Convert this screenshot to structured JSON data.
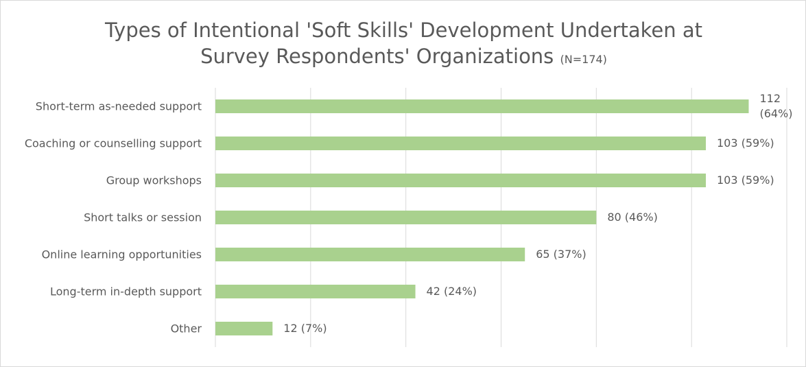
{
  "chart_data": {
    "type": "bar",
    "orientation": "horizontal",
    "title": "Types of Intentional 'Soft Skills' Development Undertaken at Survey Respondents' Organizations",
    "subtitle": "(N=174)",
    "categories": [
      "Short-term as-needed support",
      "Coaching or counselling support",
      "Group workshops",
      "Short talks or session",
      "Online learning opportunities",
      "Long-term in-depth support",
      "Other"
    ],
    "values": [
      112,
      103,
      103,
      80,
      65,
      42,
      12
    ],
    "value_labels": [
      "112 (64%)",
      "103 (59%)",
      "103 (59%)",
      "80 (46%)",
      "65 (37%)",
      "42 (24%)",
      "12 (7%)"
    ],
    "color": "#a9d18e",
    "xlim": [
      0,
      120
    ],
    "xticks": [
      0,
      20,
      40,
      60,
      80,
      100,
      120
    ],
    "grid": true
  }
}
